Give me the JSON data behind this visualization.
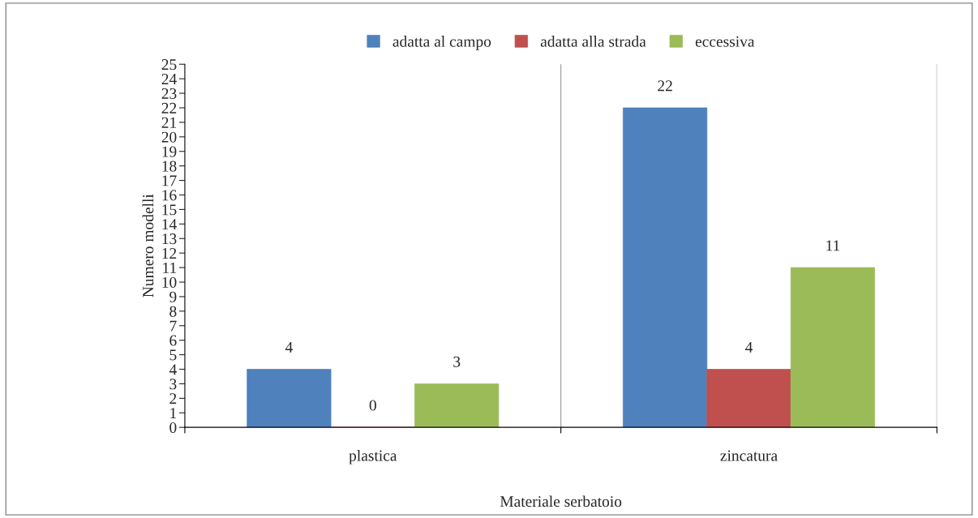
{
  "chart_data": {
    "type": "bar",
    "categories": [
      "plastica",
      "zincatura"
    ],
    "series": [
      {
        "name": "adatta al campo",
        "color": "#4f81bd",
        "values": [
          4,
          22
        ]
      },
      {
        "name": "adatta alla strada",
        "color": "#c0504d",
        "values": [
          0,
          4
        ]
      },
      {
        "name": "eccessiva",
        "color": "#9bbb59",
        "values": [
          3,
          11
        ]
      }
    ],
    "xlabel": "Materiale serbatoio",
    "ylabel": "Numero modelli",
    "ylim": [
      0,
      25
    ],
    "yticks": [
      0,
      1,
      2,
      3,
      4,
      5,
      6,
      7,
      8,
      9,
      10,
      11,
      12,
      13,
      14,
      15,
      16,
      17,
      18,
      19,
      20,
      21,
      22,
      23,
      24,
      25
    ],
    "grid": "x",
    "legend": "top",
    "data_labels": true
  }
}
